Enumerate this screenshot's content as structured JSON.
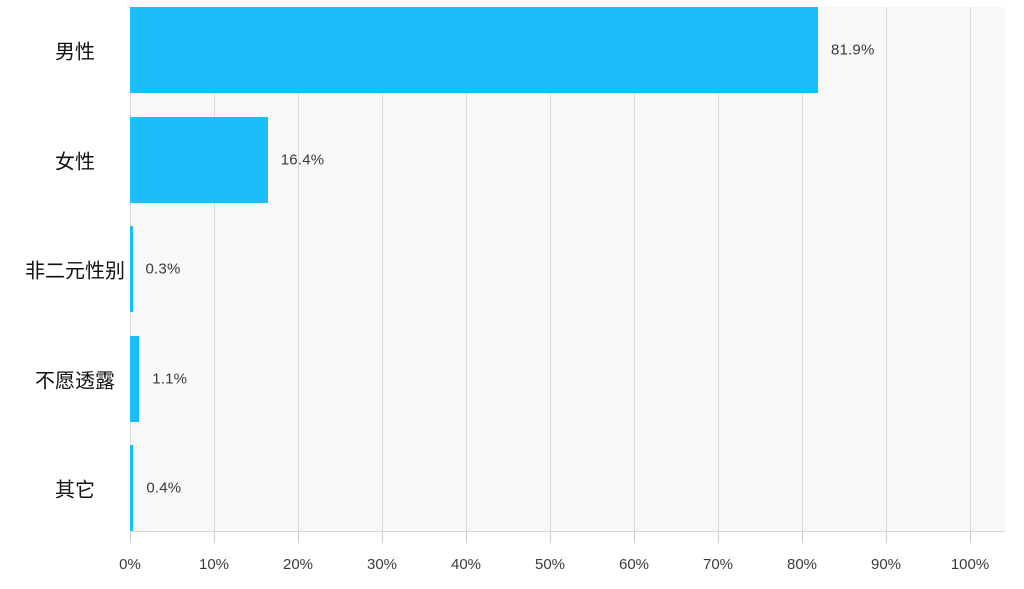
{
  "chart_data": {
    "type": "bar",
    "orientation": "horizontal",
    "title": "",
    "xlabel": "",
    "ylabel": "",
    "categories": [
      "男性",
      "女性",
      "非二元性别",
      "不愿透露",
      "其它"
    ],
    "values": [
      81.9,
      16.4,
      0.3,
      1.1,
      0.4
    ],
    "value_labels": [
      "81.9%",
      "16.4%",
      "0.3%",
      "1.1%",
      "0.4%"
    ],
    "x_tick_values": [
      0,
      10,
      20,
      30,
      40,
      50,
      60,
      70,
      80,
      90,
      100
    ],
    "x_tick_labels": [
      "0%",
      "10%",
      "20%",
      "30%",
      "40%",
      "50%",
      "60%",
      "70%",
      "80%",
      "90%",
      "100%"
    ],
    "xlim": [
      0,
      104.2
    ],
    "grid": true,
    "legend_position": "none",
    "colors": {
      "bar": "#1bbdfb",
      "plot_background": "#f8f8f8",
      "gridline": "#dbdbdb",
      "axis_line": "#d6d6d6",
      "value_text": "#3a3a3a",
      "category_text": "#111111",
      "tick_text": "#3b3b3b",
      "page_background": "#ffffff"
    }
  }
}
